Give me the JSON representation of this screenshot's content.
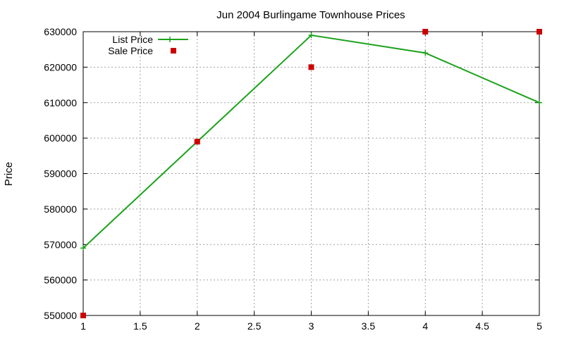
{
  "chart_data": {
    "type": "line",
    "title": "Jun 2004 Burlingame Townhouse Prices",
    "xlabel": "",
    "ylabel": "Price",
    "xlim": [
      1,
      5
    ],
    "ylim": [
      550000,
      630000
    ],
    "xticks": [
      "1",
      "1.5",
      "2",
      "2.5",
      "3",
      "3.5",
      "4",
      "4.5",
      "5"
    ],
    "yticks": [
      "550000",
      "560000",
      "570000",
      "580000",
      "590000",
      "600000",
      "610000",
      "620000",
      "630000"
    ],
    "grid": true,
    "legend_position": "top-left",
    "series": [
      {
        "name": "List Price",
        "style": "linespoints",
        "color": "#1ca21c",
        "x": [
          1,
          2,
          3,
          4,
          5
        ],
        "y": [
          569000,
          599000,
          629000,
          624000,
          610000
        ]
      },
      {
        "name": "Sale Price",
        "style": "points",
        "color": "#cc0000",
        "x": [
          1,
          2,
          3,
          4,
          5
        ],
        "y": [
          550000,
          599000,
          620000,
          630000,
          630000
        ]
      }
    ]
  }
}
